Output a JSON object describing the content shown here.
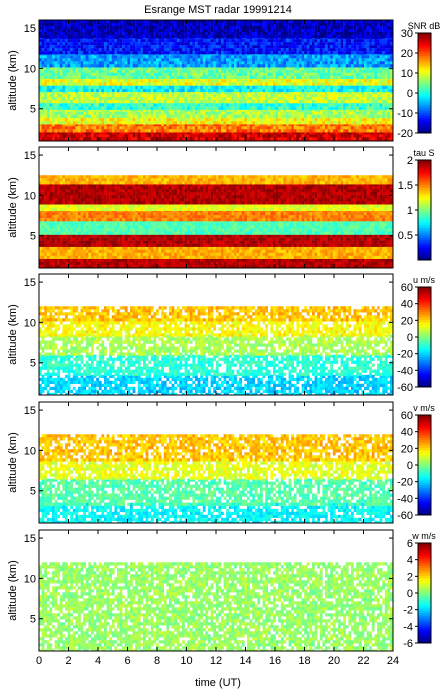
{
  "chart_data": {
    "type": "heatmap",
    "title": "Esrange MST radar 19991214",
    "xlabel": "time (UT)",
    "xlim": [
      0,
      24
    ],
    "x_ticks": [
      "0",
      "2",
      "4",
      "6",
      "8",
      "10",
      "12",
      "14",
      "16",
      "18",
      "20",
      "22",
      "24"
    ],
    "x_tick_values": [
      0,
      2,
      4,
      6,
      8,
      10,
      12,
      14,
      16,
      18,
      20,
      22,
      24
    ],
    "shared_x": true,
    "panels": [
      {
        "ylabel": "altitude (km)",
        "ylim": [
          1,
          16
        ],
        "y_ticks": [
          "5",
          "10",
          "15"
        ],
        "y_tick_values": [
          5,
          10,
          15
        ],
        "colorbar_label": "SNR dB",
        "clim": [
          -20,
          30
        ],
        "colorbar_ticks": [
          "-20",
          "-10",
          "0",
          "10",
          "20",
          "30"
        ],
        "colorbar_tick_values": [
          -20,
          -10,
          0,
          10,
          20,
          30
        ],
        "layers": [
          {
            "alt": [
              1.0,
              2.2
            ],
            "value": 26
          },
          {
            "alt": [
              2.2,
              3.2
            ],
            "value": 18
          },
          {
            "alt": [
              3.2,
              4.2
            ],
            "value": 11
          },
          {
            "alt": [
              4.2,
              5.0
            ],
            "value": 7
          },
          {
            "alt": [
              5.0,
              6.0
            ],
            "value": 1
          },
          {
            "alt": [
              6.0,
              7.2
            ],
            "value": 8
          },
          {
            "alt": [
              7.2,
              8.2
            ],
            "value": -1
          },
          {
            "alt": [
              8.2,
              9.0
            ],
            "value": 10
          },
          {
            "alt": [
              9.0,
              10.2
            ],
            "value": 4
          },
          {
            "alt": [
              10.2,
              12.0
            ],
            "value": -6
          },
          {
            "alt": [
              12.0,
              14.0
            ],
            "value": -13
          },
          {
            "alt": [
              14.0,
              16.0
            ],
            "value": -17
          }
        ]
      },
      {
        "ylabel": "altitude (km)",
        "ylim": [
          1,
          16
        ],
        "y_ticks": [
          "5",
          "10",
          "15"
        ],
        "y_tick_values": [
          5,
          10,
          15
        ],
        "colorbar_label": "tau S",
        "clim": [
          0,
          2
        ],
        "colorbar_ticks": [
          "0.5",
          "1",
          "1.5",
          "2"
        ],
        "colorbar_tick_values": [
          0.5,
          1,
          1.5,
          2
        ],
        "layers": [
          {
            "alt": [
              1.0,
              2.5
            ],
            "value": 1.9
          },
          {
            "alt": [
              2.5,
              4.0
            ],
            "value": 1.4
          },
          {
            "alt": [
              4.0,
              5.5
            ],
            "value": 1.9
          },
          {
            "alt": [
              5.5,
              7.0
            ],
            "value": 0.9
          },
          {
            "alt": [
              7.0,
              8.3
            ],
            "value": 1.5
          },
          {
            "alt": [
              8.3,
              9.2
            ],
            "value": 1.2
          },
          {
            "alt": [
              9.2,
              11.5
            ],
            "value": 1.9
          },
          {
            "alt": [
              11.5,
              12.5
            ],
            "value": 1.4
          }
        ]
      },
      {
        "ylabel": "altitude (km)",
        "ylim": [
          1,
          16
        ],
        "y_ticks": [
          "5",
          "10",
          "15"
        ],
        "y_tick_values": [
          5,
          10,
          15
        ],
        "colorbar_label": "u m/s",
        "clim": [
          -60,
          60
        ],
        "colorbar_ticks": [
          "-60",
          "-40",
          "-20",
          "0",
          "20",
          "40",
          "60"
        ],
        "colorbar_tick_values": [
          -60,
          -40,
          -20,
          0,
          20,
          40,
          60
        ],
        "layers": [
          {
            "alt": [
              1.0,
              3.5
            ],
            "value": -20
          },
          {
            "alt": [
              3.5,
              6.0
            ],
            "value": -10
          },
          {
            "alt": [
              6.0,
              8.5
            ],
            "value": 5
          },
          {
            "alt": [
              8.5,
              10.5
            ],
            "value": 15
          },
          {
            "alt": [
              10.5,
              12.0
            ],
            "value": 22
          }
        ]
      },
      {
        "ylabel": "altitude (km)",
        "ylim": [
          1,
          16
        ],
        "y_ticks": [
          "5",
          "10",
          "15"
        ],
        "y_tick_values": [
          5,
          10,
          15
        ],
        "colorbar_label": "v m/s",
        "clim": [
          -60,
          60
        ],
        "colorbar_ticks": [
          "-60",
          "-40",
          "-20",
          "0",
          "20",
          "40",
          "60"
        ],
        "colorbar_tick_values": [
          -60,
          -40,
          -20,
          0,
          20,
          40,
          60
        ],
        "layers": [
          {
            "alt": [
              1.0,
              3.5
            ],
            "value": -15
          },
          {
            "alt": [
              3.5,
              6.5
            ],
            "value": -5
          },
          {
            "alt": [
              6.5,
              9.0
            ],
            "value": 12
          },
          {
            "alt": [
              9.0,
              12.0
            ],
            "value": 22
          }
        ]
      },
      {
        "ylabel": "altitude (km)",
        "ylim": [
          1,
          16
        ],
        "y_ticks": [
          "5",
          "10",
          "15"
        ],
        "y_tick_values": [
          5,
          10,
          15
        ],
        "colorbar_label": "w m/s",
        "clim": [
          -6,
          6
        ],
        "colorbar_ticks": [
          "-6",
          "-4",
          "-2",
          "0",
          "2",
          "4",
          "6"
        ],
        "colorbar_tick_values": [
          -6,
          -4,
          -2,
          0,
          2,
          4,
          6
        ],
        "layers": [
          {
            "alt": [
              1.0,
              12.0
            ],
            "value": 0.3
          }
        ]
      }
    ]
  }
}
